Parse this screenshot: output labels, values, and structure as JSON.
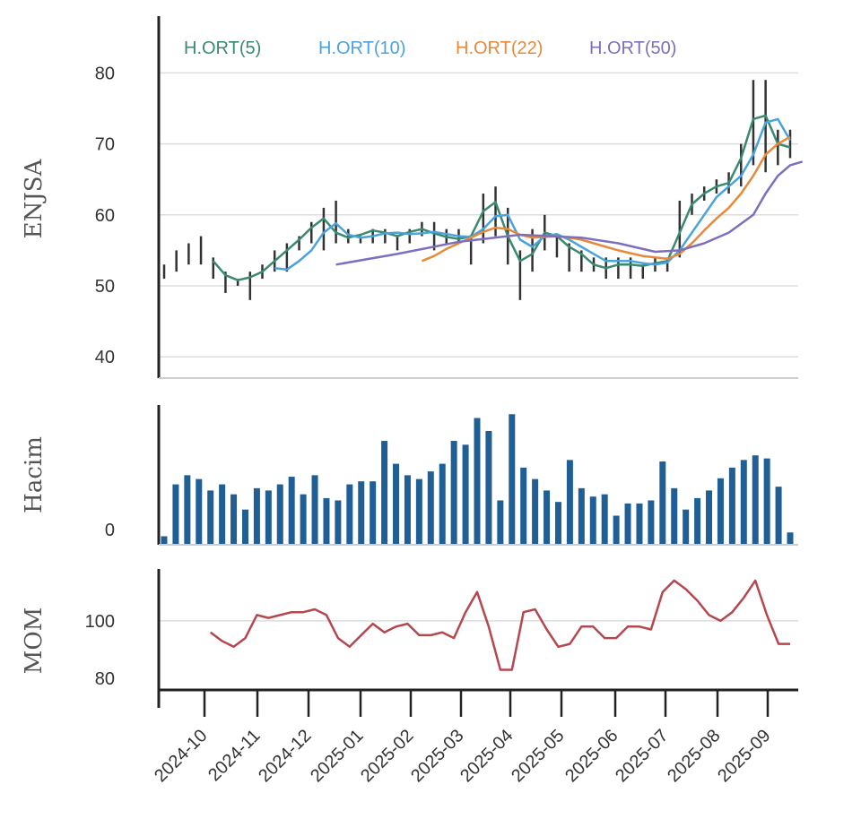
{
  "chart_data": [
    {
      "type": "line",
      "ylabel": "ENJSA",
      "ylim": [
        37,
        88
      ],
      "yticks": [
        40,
        50,
        60,
        70,
        80
      ],
      "grid": true,
      "legend": "top-left",
      "ohlc_series": {
        "name": "ENJSA",
        "high": [
          53,
          55,
          56,
          57,
          54,
          52,
          51,
          52,
          53,
          55,
          56,
          57,
          59,
          61,
          62,
          58,
          57,
          58,
          58,
          57,
          58,
          59,
          59,
          58,
          58,
          57,
          63,
          64,
          61,
          55,
          58,
          60,
          57,
          56,
          55,
          54,
          54,
          54,
          54,
          53,
          54,
          54,
          62,
          63,
          64,
          65,
          66,
          70,
          79,
          79,
          72,
          72
        ],
        "low": [
          51,
          52,
          53,
          53,
          51,
          49,
          50,
          48,
          51,
          52,
          52,
          55,
          56,
          55,
          56,
          56,
          56,
          56,
          56,
          55,
          56,
          57,
          55,
          56,
          56,
          53,
          56,
          57,
          53,
          48,
          52,
          55,
          54,
          52,
          52,
          52,
          51,
          51,
          51,
          51,
          52,
          52,
          54,
          60,
          62,
          63,
          63,
          64,
          67,
          66,
          67,
          68
        ],
        "color": "#333333"
      },
      "series": [
        {
          "name": "H.ORT(5)",
          "color": "#3a8a6e",
          "values": [
            null,
            null,
            null,
            null,
            53.5,
            51.5,
            50.8,
            51.2,
            52.0,
            53.5,
            55.0,
            56.5,
            58.2,
            59.5,
            57.5,
            56.8,
            57.2,
            57.8,
            57.5,
            57.0,
            57.6,
            58.0,
            57.4,
            56.9,
            56.6,
            57.0,
            60.5,
            61.8,
            57.0,
            53.5,
            54.5,
            57.5,
            57.0,
            55.5,
            54.5,
            53.0,
            52.5,
            53.0,
            53.0,
            52.8,
            53.2,
            53.5,
            57.5,
            61.5,
            63.0,
            64.0,
            64.5,
            68.0,
            73.5,
            74.0,
            70.0,
            69.5
          ]
        },
        {
          "name": "H.ORT(10)",
          "color": "#4aa3dd",
          "values": [
            null,
            null,
            null,
            null,
            null,
            null,
            null,
            null,
            null,
            52.5,
            52.3,
            53.5,
            55.0,
            57.5,
            58.8,
            57.2,
            56.8,
            57.0,
            57.4,
            57.5,
            57.3,
            57.4,
            57.6,
            57.3,
            57.0,
            56.9,
            58.0,
            59.8,
            60.0,
            56.5,
            55.5,
            57.0,
            57.3,
            56.5,
            55.5,
            54.5,
            53.5,
            53.5,
            53.5,
            53.2,
            53.0,
            53.3,
            55.0,
            57.5,
            60.0,
            62.5,
            64.0,
            65.5,
            68.5,
            73.0,
            73.5,
            70.5
          ]
        },
        {
          "name": "H.ORT(22)",
          "color": "#e8893a",
          "values": [
            null,
            null,
            null,
            null,
            null,
            null,
            null,
            null,
            null,
            null,
            null,
            null,
            null,
            null,
            null,
            null,
            null,
            null,
            null,
            null,
            null,
            53.5,
            54.2,
            55.2,
            56.0,
            56.8,
            57.6,
            58.2,
            58.0,
            57.2,
            56.8,
            56.9,
            57.0,
            56.8,
            56.5,
            56.0,
            55.5,
            55.0,
            54.6,
            54.2,
            54.0,
            53.8,
            54.5,
            56.0,
            57.8,
            59.5,
            61.0,
            63.0,
            65.5,
            68.5,
            70.0,
            71.0
          ]
        },
        {
          "name": "H.ORT(50)",
          "color": "#7e6fbe",
          "values": [
            null,
            null,
            null,
            null,
            null,
            null,
            null,
            null,
            null,
            null,
            null,
            null,
            null,
            null,
            null,
            null,
            null,
            null,
            null,
            null,
            null,
            null,
            null,
            null,
            null,
            null,
            null,
            null,
            null,
            null,
            null,
            null,
            null,
            null,
            null,
            null,
            null,
            null,
            null,
            null,
            null,
            null,
            null,
            null,
            null,
            null,
            null,
            null,
            null,
            null,
            null,
            null
          ]
        }
      ],
      "sma50_points": [
        [
          15,
          53.0
        ],
        [
          20,
          54.5
        ],
        [
          25,
          56.2
        ],
        [
          30,
          57.2
        ],
        [
          35,
          56.8
        ],
        [
          38,
          56.0
        ],
        [
          41,
          54.8
        ],
        [
          43,
          55.0
        ],
        [
          45,
          56.0
        ],
        [
          47,
          57.5
        ],
        [
          49,
          60.0
        ],
        [
          50,
          63.0
        ],
        [
          51,
          65.5
        ],
        [
          52,
          67.0
        ],
        [
          53,
          67.5
        ]
      ],
      "xlabels": [
        "2024-10",
        "2024-11",
        "2024-12",
        "2025-01",
        "2025-02",
        "2025-03",
        "2025-04",
        "2025-05",
        "2025-06",
        "2025-07",
        "2025-08",
        "2025-09"
      ]
    },
    {
      "type": "bar",
      "ylabel": "Hacim",
      "yticks": [
        0
      ],
      "color": "#1f5f95",
      "values": [
        1.0,
        7.8,
        9.0,
        8.5,
        7.0,
        7.8,
        6.5,
        4.5,
        7.3,
        7.0,
        7.8,
        8.8,
        6.5,
        9.0,
        6.0,
        5.7,
        7.8,
        8.2,
        8.2,
        13.5,
        10.5,
        9.0,
        8.5,
        9.5,
        10.5,
        13.5,
        13.0,
        16.5,
        14.8,
        5.7,
        17.0,
        10.0,
        8.5,
        7.0,
        5.5,
        11.0,
        7.3,
        6.2,
        6.5,
        3.7,
        5.3,
        5.3,
        5.7,
        10.8,
        7.3,
        4.5,
        6.0,
        7.0,
        8.6,
        10.0,
        11.0,
        11.6,
        11.2,
        7.5,
        1.5
      ]
    },
    {
      "type": "line",
      "ylabel": "MOM",
      "yticks": [
        80,
        100
      ],
      "ylim": [
        76,
        118
      ],
      "color": "#b5474f",
      "values": [
        null,
        null,
        null,
        null,
        96,
        93,
        91,
        94,
        102,
        101,
        102,
        103,
        103,
        104,
        102,
        94,
        91,
        95,
        99,
        96,
        98,
        99,
        95,
        95,
        96,
        94,
        103,
        110,
        98,
        83,
        83,
        103,
        104,
        97,
        91,
        92,
        98,
        98,
        94,
        94,
        98,
        98,
        97,
        110,
        114,
        111,
        107,
        102,
        100,
        103,
        108,
        114,
        102,
        92,
        92
      ]
    }
  ],
  "legend": {
    "sma5": "H.ORT(5)",
    "sma10": "H.ORT(10)",
    "sma22": "H.ORT(22)",
    "sma50": "H.ORT(50)"
  },
  "axes": {
    "price_label": "ENJSA",
    "volume_label": "Hacim",
    "mom_label": "MOM"
  }
}
